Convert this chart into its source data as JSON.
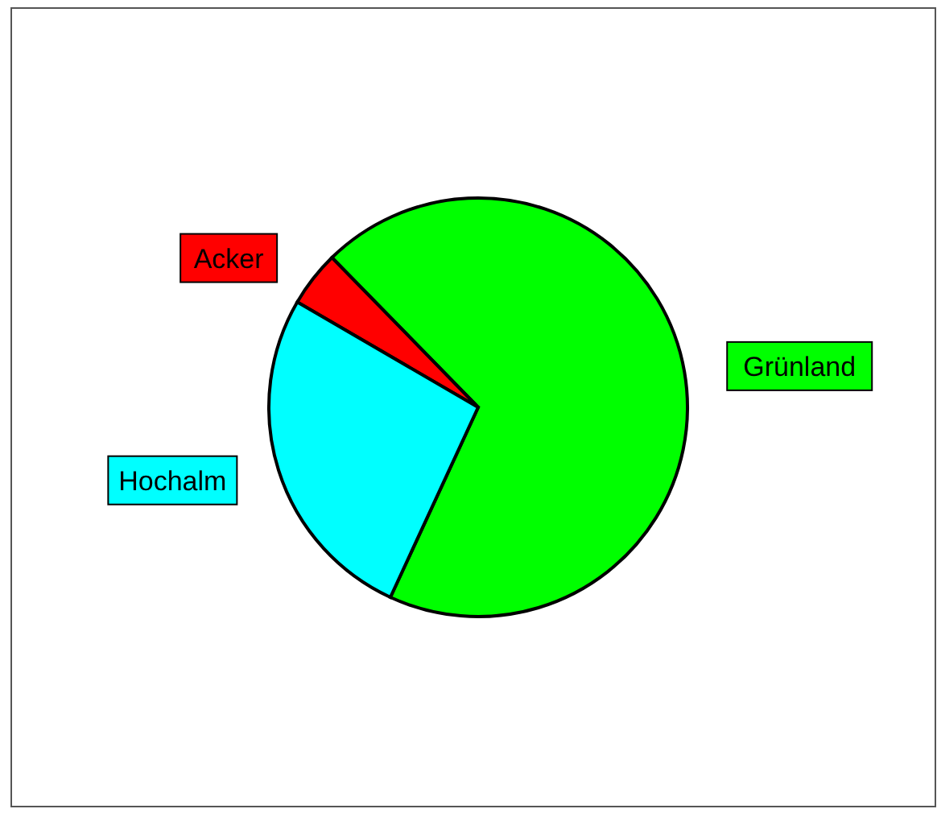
{
  "chart_data": {
    "type": "pie",
    "categories": [
      "Grünland",
      "Acker",
      "Hochalm"
    ],
    "values": [
      69.2,
      4.3,
      26.5
    ],
    "colors": [
      "#00ff00",
      "#ff0000",
      "#00ffff"
    ]
  }
}
